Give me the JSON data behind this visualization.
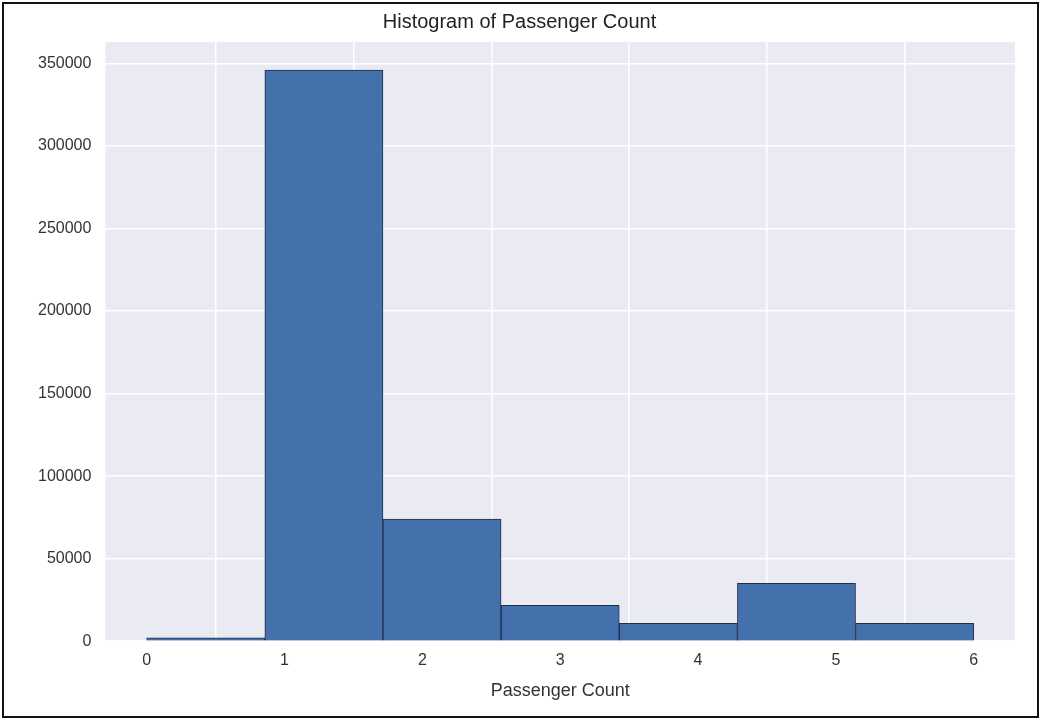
{
  "chart_data": {
    "type": "histogram",
    "title": "Histogram of Passenger Count",
    "xlabel": "Passenger Count",
    "bins": [
      0,
      0.857,
      1.714,
      2.571,
      3.429,
      4.286,
      5.143,
      6
    ],
    "values": [
      2000,
      346000,
      74000,
      21800,
      10900,
      35100,
      10900
    ],
    "color": "#4470ab",
    "xlim": [
      -0.3,
      6.3
    ],
    "xticks": [
      0,
      1,
      2,
      3,
      4,
      5,
      6
    ],
    "ylim": [
      0,
      363000
    ],
    "yticks": [
      0,
      50000,
      100000,
      150000,
      200000,
      250000,
      300000,
      350000
    ],
    "grid": true,
    "legend": false
  }
}
